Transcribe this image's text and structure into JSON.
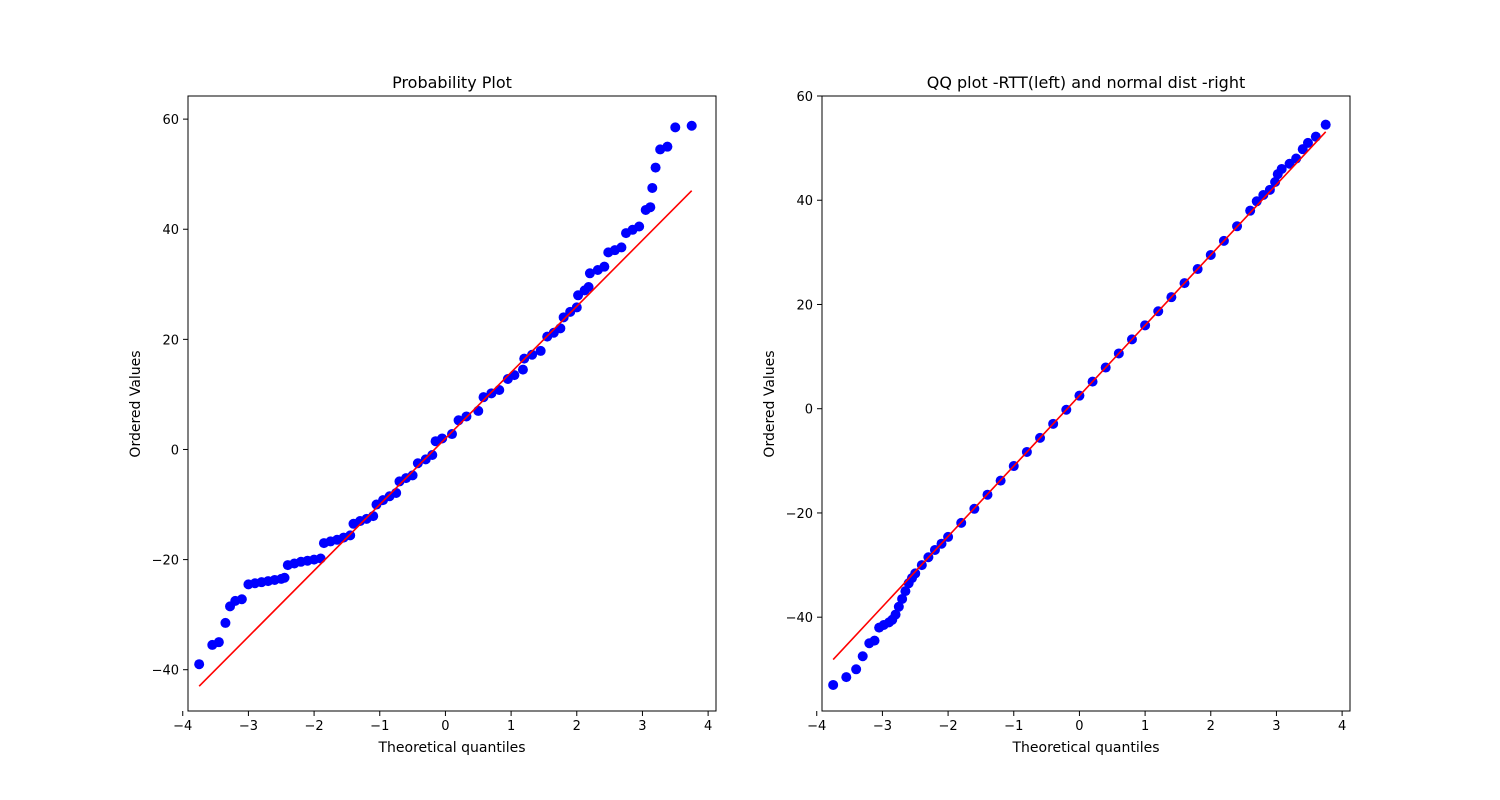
{
  "colors": {
    "points": "#0000ff",
    "fit_line": "#ff0000",
    "axes": "#000000",
    "background": "#ffffff"
  },
  "chart_data": [
    {
      "type": "scatter",
      "title": "Probability Plot",
      "xlabel": "Theoretical quantiles",
      "ylabel": "Ordered Values",
      "xlim": [
        -3.92,
        4.12
      ],
      "ylim": [
        -47.5,
        64.2
      ],
      "xticks": [
        -4,
        -3,
        -2,
        -1,
        0,
        1,
        2,
        3,
        4
      ],
      "yticks": [
        -40,
        -20,
        0,
        20,
        40,
        60
      ],
      "grid": false,
      "fit_line": {
        "slope": 12.0,
        "intercept": 2.0,
        "x": [
          -3.75,
          3.75
        ]
      },
      "series": [
        {
          "values": [
            [
              -3.75,
              -39.0
            ],
            [
              -3.55,
              -35.5
            ],
            [
              -3.45,
              -35.0
            ],
            [
              -3.35,
              -31.5
            ],
            [
              -3.28,
              -28.5
            ],
            [
              -3.2,
              -27.5
            ],
            [
              -3.1,
              -27.2
            ],
            [
              -3.0,
              -24.5
            ],
            [
              -2.9,
              -24.3
            ],
            [
              -2.8,
              -24.1
            ],
            [
              -2.7,
              -23.9
            ],
            [
              -2.6,
              -23.7
            ],
            [
              -2.5,
              -23.5
            ],
            [
              -2.45,
              -23.3
            ],
            [
              -2.4,
              -21.0
            ],
            [
              -2.3,
              -20.7
            ],
            [
              -2.2,
              -20.4
            ],
            [
              -2.1,
              -20.2
            ],
            [
              -2.0,
              -20.0
            ],
            [
              -1.9,
              -19.8
            ],
            [
              -1.85,
              -17.0
            ],
            [
              -1.75,
              -16.7
            ],
            [
              -1.65,
              -16.4
            ],
            [
              -1.55,
              -16.0
            ],
            [
              -1.45,
              -15.6
            ],
            [
              -1.4,
              -13.5
            ],
            [
              -1.3,
              -13.0
            ],
            [
              -1.2,
              -12.6
            ],
            [
              -1.1,
              -12.1
            ],
            [
              -1.05,
              -10.0
            ],
            [
              -0.95,
              -9.2
            ],
            [
              -0.85,
              -8.5
            ],
            [
              -0.75,
              -7.9
            ],
            [
              -0.7,
              -5.8
            ],
            [
              -0.6,
              -5.2
            ],
            [
              -0.5,
              -4.7
            ],
            [
              -0.42,
              -2.5
            ],
            [
              -0.3,
              -1.8
            ],
            [
              -0.2,
              -1.0
            ],
            [
              -0.15,
              1.5
            ],
            [
              -0.05,
              2.0
            ],
            [
              0.1,
              2.8
            ],
            [
              0.2,
              5.3
            ],
            [
              0.32,
              6.0
            ],
            [
              0.5,
              7.0
            ],
            [
              0.58,
              9.5
            ],
            [
              0.7,
              10.2
            ],
            [
              0.82,
              10.8
            ],
            [
              0.95,
              12.8
            ],
            [
              1.05,
              13.5
            ],
            [
              1.18,
              14.5
            ],
            [
              1.2,
              16.5
            ],
            [
              1.32,
              17.2
            ],
            [
              1.45,
              17.9
            ],
            [
              1.55,
              20.5
            ],
            [
              1.65,
              21.2
            ],
            [
              1.75,
              22.0
            ],
            [
              1.8,
              24.0
            ],
            [
              1.9,
              25.0
            ],
            [
              2.0,
              25.8
            ],
            [
              2.02,
              28.0
            ],
            [
              2.12,
              28.9
            ],
            [
              2.18,
              29.5
            ],
            [
              2.2,
              32.0
            ],
            [
              2.32,
              32.6
            ],
            [
              2.42,
              33.2
            ],
            [
              2.48,
              35.8
            ],
            [
              2.58,
              36.2
            ],
            [
              2.68,
              36.7
            ],
            [
              2.75,
              39.3
            ],
            [
              2.85,
              39.9
            ],
            [
              2.95,
              40.5
            ],
            [
              3.05,
              43.5
            ],
            [
              3.12,
              44.0
            ],
            [
              3.15,
              47.5
            ],
            [
              3.2,
              51.2
            ],
            [
              3.27,
              54.5
            ],
            [
              3.38,
              55.0
            ],
            [
              3.5,
              58.5
            ],
            [
              3.75,
              58.8
            ]
          ]
        }
      ]
    },
    {
      "type": "scatter",
      "title": "QQ plot -RTT(left) and normal dist -right",
      "xlabel": "Theoretical quantiles",
      "ylabel": "Ordered Values",
      "xlim": [
        -3.92,
        4.12
      ],
      "ylim": [
        -58.0,
        60.0
      ],
      "xticks": [
        -4,
        -3,
        -2,
        -1,
        0,
        1,
        2,
        3,
        4
      ],
      "yticks": [
        -40,
        -20,
        0,
        20,
        40,
        60
      ],
      "grid": false,
      "fit_line": {
        "slope": 13.5,
        "intercept": 2.5,
        "x": [
          -3.75,
          3.75
        ]
      },
      "series": [
        {
          "values": [
            [
              -3.75,
              -53.0
            ],
            [
              -3.55,
              -51.5
            ],
            [
              -3.4,
              -50.0
            ],
            [
              -3.3,
              -47.5
            ],
            [
              -3.2,
              -45.0
            ],
            [
              -3.12,
              -44.5
            ],
            [
              -3.05,
              -42.0
            ],
            [
              -2.98,
              -41.5
            ],
            [
              -2.9,
              -41.0
            ],
            [
              -2.85,
              -40.5
            ],
            [
              -2.8,
              -39.5
            ],
            [
              -2.75,
              -38.0
            ],
            [
              -2.7,
              -36.5
            ],
            [
              -2.65,
              -35.0
            ],
            [
              -2.6,
              -33.5
            ],
            [
              -2.55,
              -32.5
            ],
            [
              -2.5,
              -31.6
            ],
            [
              -2.4,
              -30.0
            ],
            [
              -2.3,
              -28.5
            ],
            [
              -2.2,
              -27.1
            ],
            [
              -2.1,
              -25.9
            ],
            [
              -2.0,
              -24.6
            ],
            [
              -1.8,
              -21.9
            ],
            [
              -1.6,
              -19.2
            ],
            [
              -1.4,
              -16.5
            ],
            [
              -1.2,
              -13.8
            ],
            [
              -1.0,
              -11.0
            ],
            [
              -0.8,
              -8.3
            ],
            [
              -0.6,
              -5.6
            ],
            [
              -0.4,
              -2.9
            ],
            [
              -0.2,
              -0.2
            ],
            [
              0.0,
              2.5
            ],
            [
              0.2,
              5.2
            ],
            [
              0.4,
              7.9
            ],
            [
              0.6,
              10.6
            ],
            [
              0.8,
              13.3
            ],
            [
              1.0,
              16.0
            ],
            [
              1.2,
              18.7
            ],
            [
              1.4,
              21.4
            ],
            [
              1.6,
              24.1
            ],
            [
              1.8,
              26.8
            ],
            [
              2.0,
              29.5
            ],
            [
              2.2,
              32.2
            ],
            [
              2.4,
              35.0
            ],
            [
              2.6,
              38.0
            ],
            [
              2.7,
              39.8
            ],
            [
              2.8,
              41.0
            ],
            [
              2.9,
              42.0
            ],
            [
              2.98,
              43.5
            ],
            [
              3.02,
              45.0
            ],
            [
              3.08,
              46.0
            ],
            [
              3.2,
              47.0
            ],
            [
              3.3,
              48.0
            ],
            [
              3.4,
              49.8
            ],
            [
              3.48,
              51.0
            ],
            [
              3.6,
              52.2
            ],
            [
              3.75,
              54.5
            ]
          ]
        }
      ]
    }
  ]
}
